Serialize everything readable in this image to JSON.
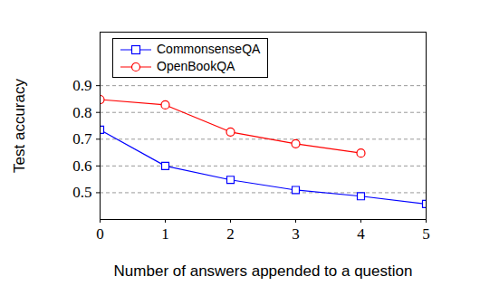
{
  "chart_data": {
    "type": "line",
    "x_label": "Number of answers appended to a question",
    "y_label": "Test accuracy",
    "xlim": [
      0,
      5
    ],
    "xticks": [
      0,
      1,
      2,
      3,
      4,
      5
    ],
    "ylim": [
      0.4,
      1.1
    ],
    "yticks": [
      0.5,
      0.6,
      0.7,
      0.8,
      0.9
    ],
    "grid": true,
    "legend": "top-left",
    "series": [
      {
        "name": "CommonsenseQA",
        "color": "#0000ff",
        "marker": "square",
        "x": [
          0,
          1,
          2,
          3,
          4,
          5
        ],
        "values": [
          0.735,
          0.6,
          0.548,
          0.51,
          0.487,
          0.458
        ]
      },
      {
        "name": "OpenBookQA",
        "color": "#ff0000",
        "marker": "circle",
        "x": [
          0,
          1,
          2,
          3,
          4
        ],
        "values": [
          0.848,
          0.828,
          0.727,
          0.683,
          0.648
        ]
      }
    ]
  }
}
